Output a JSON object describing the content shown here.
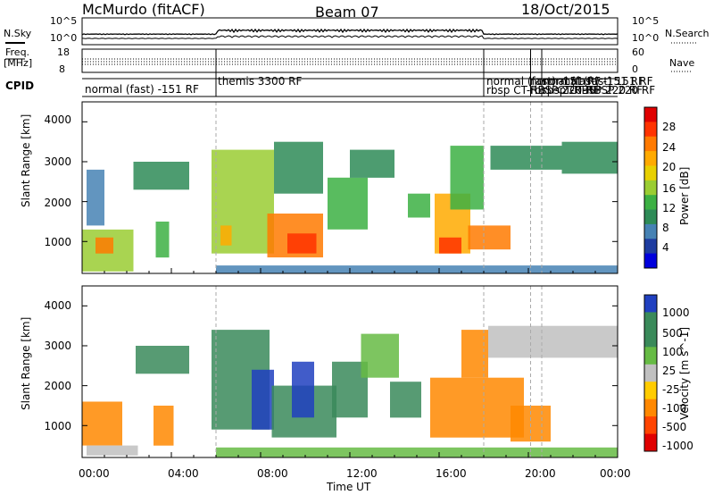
{
  "header": {
    "station": "McMurdo (fitACF)",
    "beam": "Beam 07",
    "date": "18/Oct/2015"
  },
  "top_panels": {
    "nsky_label": "N.Sky",
    "nsearch_label": "N.Search",
    "freq_label_line1": "Freq.",
    "freq_label_line2": "[MHz]",
    "nave_label": "Nave",
    "cpid_label": "CPID",
    "nsky_ticks": [
      "10^5",
      "10^0"
    ],
    "nsearch_ticks": [
      "10^5",
      "10^0"
    ],
    "freq_ticks": [
      "18",
      "8"
    ],
    "nave_ticks": [
      "60",
      "0"
    ],
    "cpid_segments": [
      {
        "text": "normal (fast) -151 RF",
        "start_hr": 0.0
      },
      {
        "text": "themis 3300 RF",
        "start_hr": 6.0
      },
      {
        "text": "normal (fast) -151 RF",
        "start_hr": 18.0
      },
      {
        "text": "rbsp CT-RBSP 220 RF",
        "start_hr": 18.0
      },
      {
        "text": "normal (fast) -151 RF",
        "start_hr": 20.1
      },
      {
        "text": "rbsp CT-RBSP 220 RF",
        "start_hr": 20.1
      },
      {
        "text": "normal (fast) 151 RF",
        "start_hr": 20.6
      },
      {
        "text": "rbsp CT-RBSP 220 RF",
        "start_hr": 20.6
      }
    ]
  },
  "x_axis": {
    "label": "Time UT",
    "ticks": [
      "00:00",
      "04:00",
      "08:00",
      "12:00",
      "16:00",
      "20:00",
      "00:00"
    ]
  },
  "colorbars": {
    "power": {
      "label": "Power [dB]",
      "ticks": [
        "28",
        "24",
        "20",
        "16",
        "12",
        "8",
        "4"
      ],
      "colors": [
        "#e00000",
        "#ff3300",
        "#ff7a00",
        "#ffaa00",
        "#e8d000",
        "#9acd32",
        "#3cb043",
        "#2e8b57",
        "#4682b4",
        "#1e3ca0",
        "#0000dd"
      ]
    },
    "velocity": {
      "label": "Velocity [m s^-1]",
      "ticks": [
        "1000",
        "500",
        "100",
        "25",
        "-25",
        "-100",
        "-500",
        "-1000"
      ],
      "colors": [
        "#2040c0",
        "#3a8a5a",
        "#3a8a5a",
        "#66bb44",
        "#c0c0c0",
        "#ffcc00",
        "#ff8800",
        "#ff4400",
        "#e00000"
      ]
    }
  },
  "chart_data": [
    {
      "type": "heatmap",
      "title": "Power",
      "xlabel": "Time UT",
      "ylabel": "Slant Range [km]",
      "xlim": [
        0,
        24
      ],
      "ylim": [
        200,
        4500
      ],
      "yticks": [
        1000,
        2000,
        3000,
        4000
      ],
      "colorbar": {
        "label": "Power [dB]",
        "range": [
          0,
          30
        ],
        "ticks": [
          4,
          8,
          12,
          16,
          20,
          24,
          28
        ]
      },
      "regions": [
        {
          "t_start": 0.0,
          "t_end": 2.3,
          "r_low": 250,
          "r_high": 1300,
          "value": 14
        },
        {
          "t_start": 0.6,
          "t_end": 1.4,
          "r_low": 700,
          "r_high": 1100,
          "value": 24
        },
        {
          "t_start": 0.2,
          "t_end": 1.0,
          "r_low": 1400,
          "r_high": 2800,
          "value": 6
        },
        {
          "t_start": 2.3,
          "t_end": 4.8,
          "r_low": 2300,
          "r_high": 3000,
          "value": 8
        },
        {
          "t_start": 3.3,
          "t_end": 3.9,
          "r_low": 600,
          "r_high": 1500,
          "value": 12
        },
        {
          "t_start": 5.8,
          "t_end": 8.6,
          "r_low": 700,
          "r_high": 3300,
          "value": 14
        },
        {
          "t_start": 6.2,
          "t_end": 6.7,
          "r_low": 900,
          "r_high": 1400,
          "value": 22
        },
        {
          "t_start": 8.3,
          "t_end": 10.8,
          "r_low": 600,
          "r_high": 1700,
          "value": 24
        },
        {
          "t_start": 9.2,
          "t_end": 10.5,
          "r_low": 700,
          "r_high": 1200,
          "value": 28
        },
        {
          "t_start": 8.6,
          "t_end": 10.8,
          "r_low": 2200,
          "r_high": 3500,
          "value": 10
        },
        {
          "t_start": 11.0,
          "t_end": 12.8,
          "r_low": 1300,
          "r_high": 2600,
          "value": 12
        },
        {
          "t_start": 12.0,
          "t_end": 14.0,
          "r_low": 2600,
          "r_high": 3300,
          "value": 8
        },
        {
          "t_start": 14.6,
          "t_end": 15.6,
          "r_low": 1600,
          "r_high": 2200,
          "value": 12
        },
        {
          "t_start": 15.8,
          "t_end": 17.4,
          "r_low": 700,
          "r_high": 2200,
          "value": 22
        },
        {
          "t_start": 16.0,
          "t_end": 17.0,
          "r_low": 700,
          "r_high": 1100,
          "value": 28
        },
        {
          "t_start": 16.5,
          "t_end": 18.0,
          "r_low": 1800,
          "r_high": 3400,
          "value": 12
        },
        {
          "t_start": 17.3,
          "t_end": 19.2,
          "r_low": 800,
          "r_high": 1400,
          "value": 24
        },
        {
          "t_start": 18.3,
          "t_end": 21.5,
          "r_low": 2800,
          "r_high": 3400,
          "value": 10
        },
        {
          "t_start": 21.5,
          "t_end": 24.0,
          "r_low": 2700,
          "r_high": 3500,
          "value": 8
        },
        {
          "t_start": 6.0,
          "t_end": 24.0,
          "r_low": 200,
          "r_high": 400,
          "value": 6
        }
      ]
    },
    {
      "type": "heatmap",
      "title": "Velocity",
      "xlabel": "Time UT",
      "ylabel": "Slant Range [km]",
      "xlim": [
        0,
        24
      ],
      "ylim": [
        200,
        4500
      ],
      "yticks": [
        1000,
        2000,
        3000,
        4000
      ],
      "colorbar": {
        "label": "Velocity [m s^-1]",
        "ticks": [
          1000,
          500,
          100,
          25,
          -25,
          -100,
          -500,
          -1000
        ]
      },
      "regions": [
        {
          "t_start": 0.0,
          "t_end": 1.8,
          "r_low": 500,
          "r_high": 1600,
          "value": -200
        },
        {
          "t_start": 0.2,
          "t_end": 2.5,
          "r_low": 250,
          "r_high": 500,
          "value": 0
        },
        {
          "t_start": 3.2,
          "t_end": 4.1,
          "r_low": 500,
          "r_high": 1500,
          "value": -200
        },
        {
          "t_start": 2.4,
          "t_end": 4.8,
          "r_low": 2300,
          "r_high": 3000,
          "value": 300
        },
        {
          "t_start": 5.8,
          "t_end": 8.4,
          "r_low": 900,
          "r_high": 3400,
          "value": 300
        },
        {
          "t_start": 7.6,
          "t_end": 8.6,
          "r_low": 900,
          "r_high": 2400,
          "value": 1000
        },
        {
          "t_start": 8.5,
          "t_end": 11.4,
          "r_low": 700,
          "r_high": 2000,
          "value": 300
        },
        {
          "t_start": 9.4,
          "t_end": 10.4,
          "r_low": 1200,
          "r_high": 2600,
          "value": 1000
        },
        {
          "t_start": 11.2,
          "t_end": 12.8,
          "r_low": 1200,
          "r_high": 2600,
          "value": 300
        },
        {
          "t_start": 12.5,
          "t_end": 14.2,
          "r_low": 2200,
          "r_high": 3300,
          "value": 50
        },
        {
          "t_start": 13.8,
          "t_end": 15.2,
          "r_low": 1200,
          "r_high": 2100,
          "value": 300
        },
        {
          "t_start": 15.6,
          "t_end": 19.8,
          "r_low": 700,
          "r_high": 2200,
          "value": -200
        },
        {
          "t_start": 17.0,
          "t_end": 18.2,
          "r_low": 2200,
          "r_high": 3400,
          "value": -200
        },
        {
          "t_start": 18.2,
          "t_end": 24.0,
          "r_low": 2700,
          "r_high": 3500,
          "value": 0
        },
        {
          "t_start": 19.2,
          "t_end": 21.0,
          "r_low": 600,
          "r_high": 1500,
          "value": -200
        },
        {
          "t_start": 6.0,
          "t_end": 24.0,
          "r_low": 200,
          "r_high": 450,
          "value": 30
        }
      ]
    }
  ]
}
